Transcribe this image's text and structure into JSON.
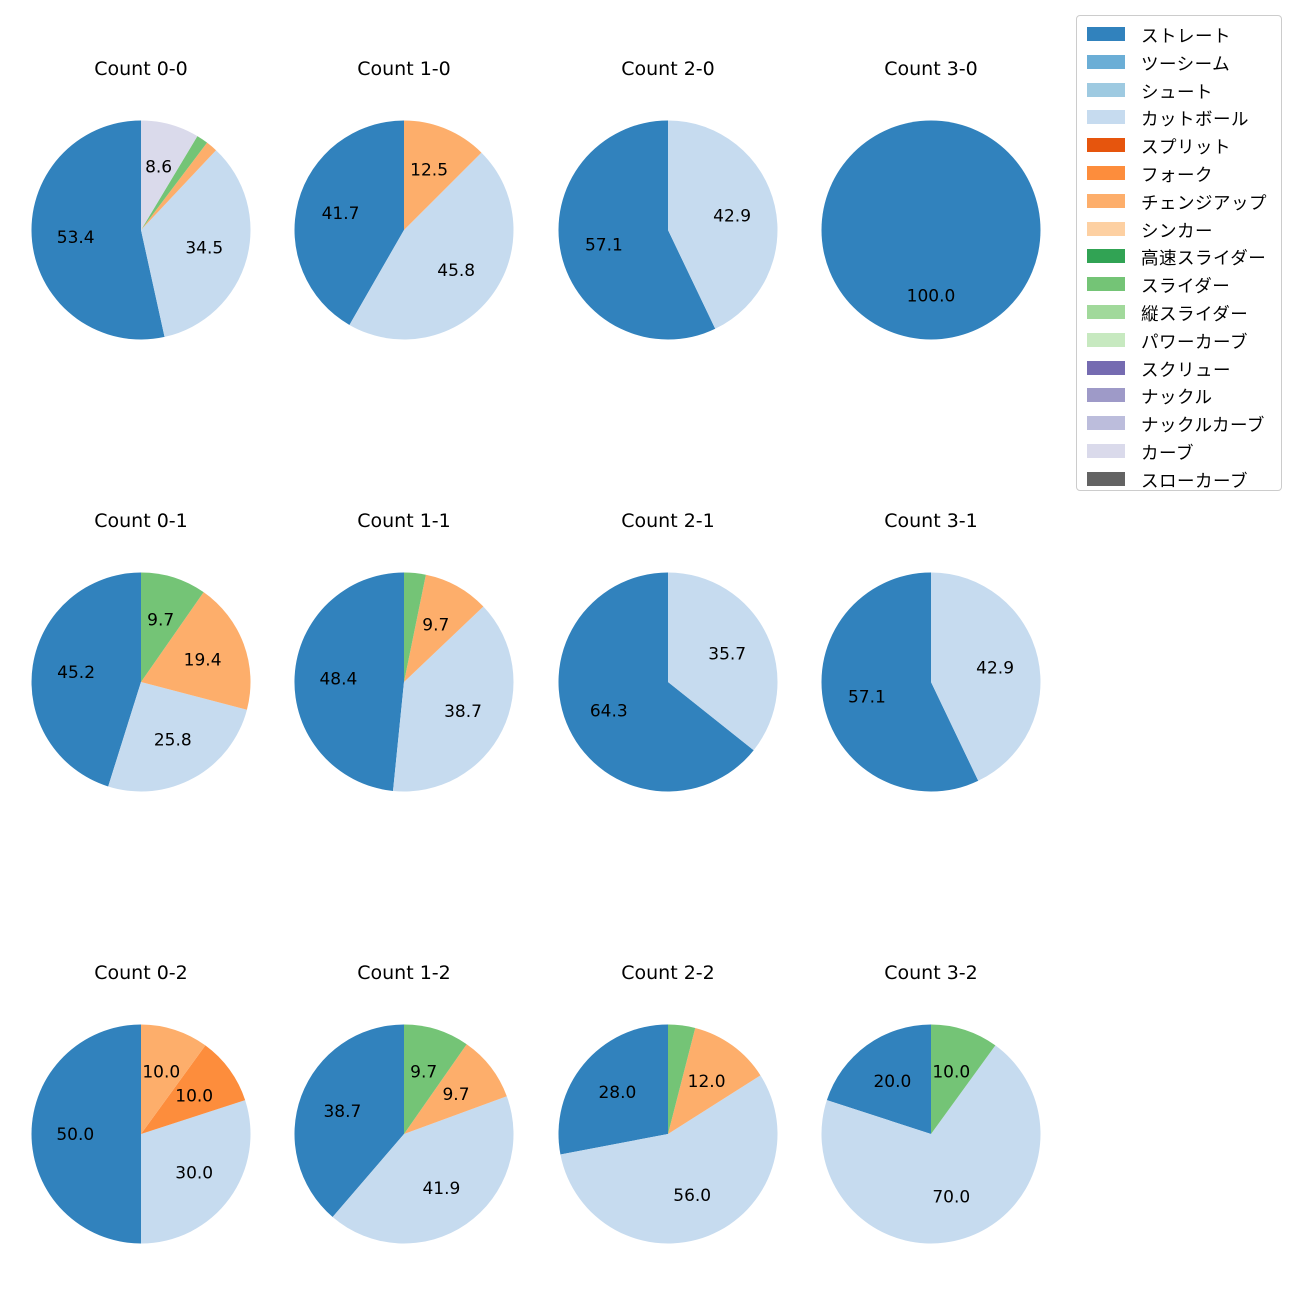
{
  "chart_data": [
    {
      "type": "pie",
      "title": "Count 0-0",
      "slices": [
        {
          "label": "ストレート",
          "value": 53.4,
          "text": "53.4"
        },
        {
          "label": "カットボール",
          "value": 34.5,
          "text": "34.5"
        },
        {
          "label": "チェンジアップ",
          "value": 1.7,
          "text": ""
        },
        {
          "label": "スライダー",
          "value": 1.7,
          "text": ""
        },
        {
          "label": "カーブ",
          "value": 8.6,
          "text": "8.6"
        }
      ]
    },
    {
      "type": "pie",
      "title": "Count 1-0",
      "slices": [
        {
          "label": "ストレート",
          "value": 41.7,
          "text": "41.7"
        },
        {
          "label": "カットボール",
          "value": 45.8,
          "text": "45.8"
        },
        {
          "label": "チェンジアップ",
          "value": 12.5,
          "text": "12.5"
        }
      ]
    },
    {
      "type": "pie",
      "title": "Count 2-0",
      "slices": [
        {
          "label": "ストレート",
          "value": 57.1,
          "text": "57.1"
        },
        {
          "label": "カットボール",
          "value": 42.9,
          "text": "42.9"
        }
      ]
    },
    {
      "type": "pie",
      "title": "Count 3-0",
      "slices": [
        {
          "label": "ストレート",
          "value": 100.0,
          "text": "100.0"
        }
      ]
    },
    {
      "type": "pie",
      "title": "Count 0-1",
      "slices": [
        {
          "label": "ストレート",
          "value": 45.2,
          "text": "45.2"
        },
        {
          "label": "カットボール",
          "value": 25.8,
          "text": "25.8"
        },
        {
          "label": "チェンジアップ",
          "value": 19.4,
          "text": "19.4"
        },
        {
          "label": "スライダー",
          "value": 9.7,
          "text": "9.7"
        }
      ]
    },
    {
      "type": "pie",
      "title": "Count 1-1",
      "slices": [
        {
          "label": "ストレート",
          "value": 48.4,
          "text": "48.4"
        },
        {
          "label": "カットボール",
          "value": 38.7,
          "text": "38.7"
        },
        {
          "label": "チェンジアップ",
          "value": 9.7,
          "text": "9.7"
        },
        {
          "label": "スライダー",
          "value": 3.2,
          "text": ""
        }
      ]
    },
    {
      "type": "pie",
      "title": "Count 2-1",
      "slices": [
        {
          "label": "ストレート",
          "value": 64.3,
          "text": "64.3"
        },
        {
          "label": "カットボール",
          "value": 35.7,
          "text": "35.7"
        }
      ]
    },
    {
      "type": "pie",
      "title": "Count 3-1",
      "slices": [
        {
          "label": "ストレート",
          "value": 57.1,
          "text": "57.1"
        },
        {
          "label": "カットボール",
          "value": 42.9,
          "text": "42.9"
        }
      ]
    },
    {
      "type": "pie",
      "title": "Count 0-2",
      "slices": [
        {
          "label": "ストレート",
          "value": 50.0,
          "text": "50.0"
        },
        {
          "label": "カットボール",
          "value": 30.0,
          "text": "30.0"
        },
        {
          "label": "フォーク",
          "value": 10.0,
          "text": "10.0"
        },
        {
          "label": "チェンジアップ",
          "value": 10.0,
          "text": "10.0"
        }
      ]
    },
    {
      "type": "pie",
      "title": "Count 1-2",
      "slices": [
        {
          "label": "ストレート",
          "value": 38.7,
          "text": "38.7"
        },
        {
          "label": "カットボール",
          "value": 41.9,
          "text": "41.9"
        },
        {
          "label": "チェンジアップ",
          "value": 9.7,
          "text": "9.7"
        },
        {
          "label": "スライダー",
          "value": 9.7,
          "text": "9.7"
        }
      ]
    },
    {
      "type": "pie",
      "title": "Count 2-2",
      "slices": [
        {
          "label": "ストレート",
          "value": 28.0,
          "text": "28.0"
        },
        {
          "label": "カットボール",
          "value": 56.0,
          "text": "56.0"
        },
        {
          "label": "チェンジアップ",
          "value": 12.0,
          "text": "12.0"
        },
        {
          "label": "スライダー",
          "value": 4.0,
          "text": ""
        }
      ]
    },
    {
      "type": "pie",
      "title": "Count 3-2",
      "slices": [
        {
          "label": "ストレート",
          "value": 20.0,
          "text": "20.0"
        },
        {
          "label": "カットボール",
          "value": 70.0,
          "text": "70.0"
        },
        {
          "label": "スライダー",
          "value": 10.0,
          "text": "10.0"
        }
      ]
    }
  ],
  "legend": {
    "items": [
      {
        "label": "ストレート",
        "color": "#3182bd"
      },
      {
        "label": "ツーシーム",
        "color": "#6baed6"
      },
      {
        "label": "シュート",
        "color": "#9ecae1"
      },
      {
        "label": "カットボール",
        "color": "#c6dbef"
      },
      {
        "label": "スプリット",
        "color": "#e6550d"
      },
      {
        "label": "フォーク",
        "color": "#fd8d3c"
      },
      {
        "label": "チェンジアップ",
        "color": "#fdae6b"
      },
      {
        "label": "シンカー",
        "color": "#fdd0a2"
      },
      {
        "label": "高速スライダー",
        "color": "#31a354"
      },
      {
        "label": "スライダー",
        "color": "#74c476"
      },
      {
        "label": "縦スライダー",
        "color": "#a1d99b"
      },
      {
        "label": "パワーカーブ",
        "color": "#c7e9c0"
      },
      {
        "label": "スクリュー",
        "color": "#756bb1"
      },
      {
        "label": "ナックル",
        "color": "#9e9ac8"
      },
      {
        "label": "ナックルカーブ",
        "color": "#bcbddc"
      },
      {
        "label": "カーブ",
        "color": "#dadaeb"
      },
      {
        "label": "スローカーブ",
        "color": "#636363"
      }
    ]
  }
}
